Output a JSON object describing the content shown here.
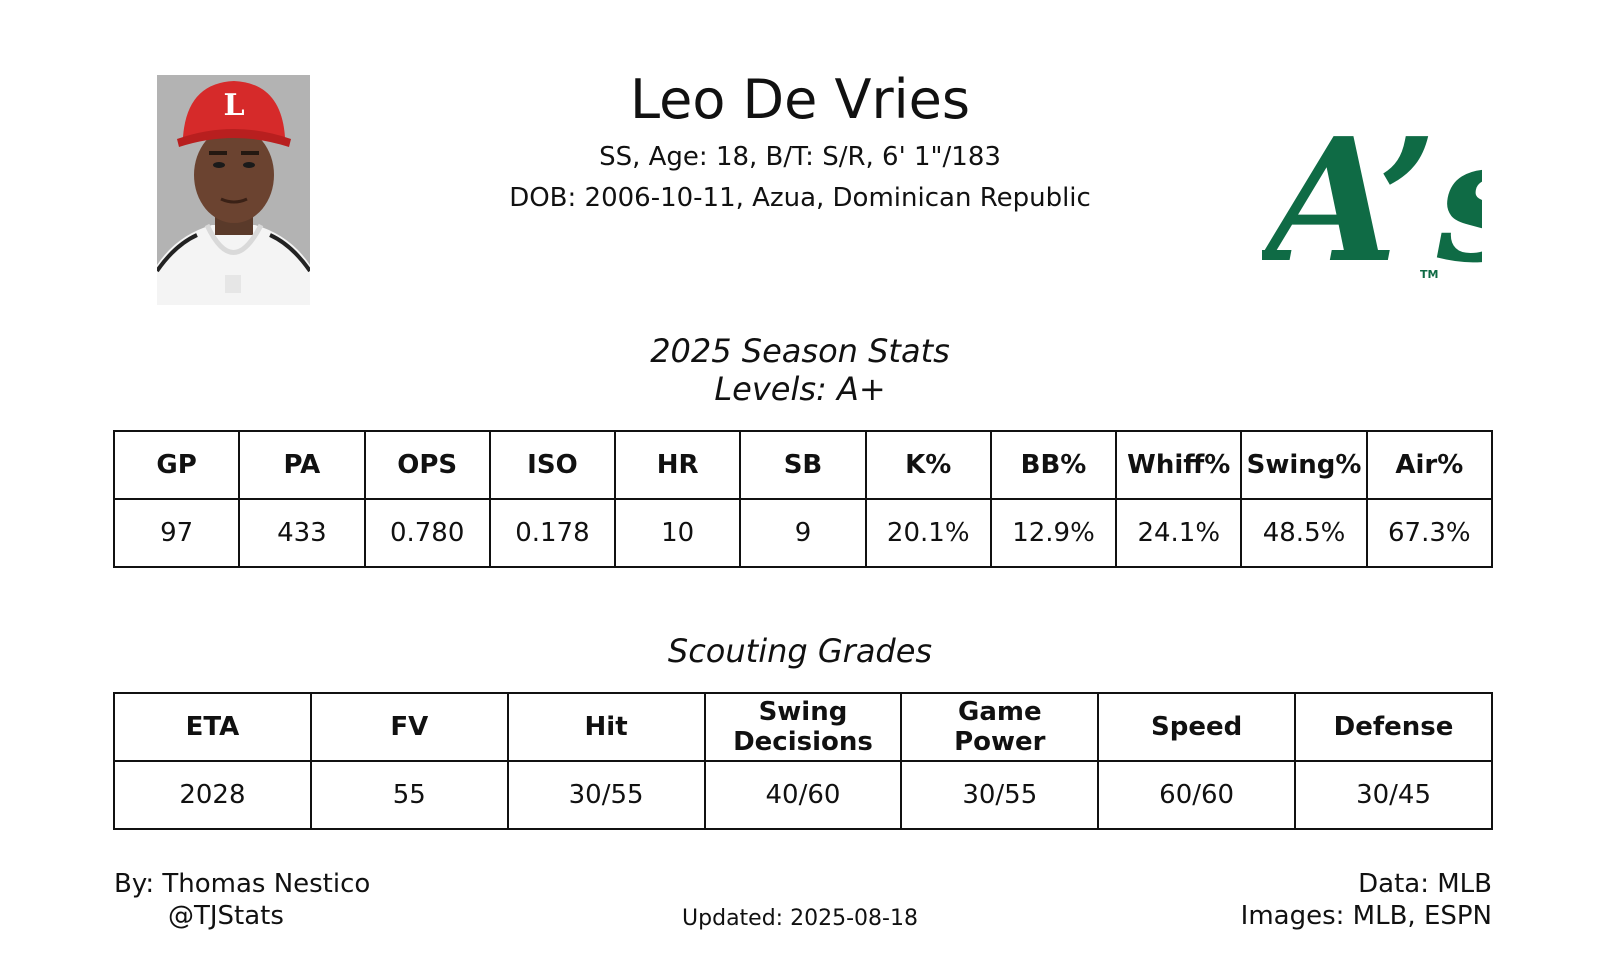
{
  "player": {
    "name": "Leo De Vries",
    "bio_line_1": "SS, Age: 18, B/T: S/R, 6' 1\"/183",
    "bio_line_2": "DOB: 2006-10-11, Azua, Dominican Republic"
  },
  "team_logo": {
    "text": "A’s",
    "trademark": "TM",
    "color": "#0f6b45"
  },
  "headshot": {
    "cap_letter": "L",
    "cap_color": "#d62a2a",
    "background_color": "#b3b3b3"
  },
  "season_stats": {
    "title": "2025 Season Stats",
    "levels": "Levels: A+",
    "headers": [
      "GP",
      "PA",
      "OPS",
      "ISO",
      "HR",
      "SB",
      "K%",
      "BB%",
      "Whiff%",
      "Swing%",
      "Air%"
    ],
    "values": [
      "97",
      "433",
      "0.780",
      "0.178",
      "10",
      "9",
      "20.1%",
      "12.9%",
      "24.1%",
      "48.5%",
      "67.3%"
    ]
  },
  "scouting_grades": {
    "title": "Scouting Grades",
    "headers": [
      {
        "line1": "ETA",
        "line2": ""
      },
      {
        "line1": "FV",
        "line2": ""
      },
      {
        "line1": "Hit",
        "line2": ""
      },
      {
        "line1": "Swing",
        "line2": "Decisions"
      },
      {
        "line1": "Game",
        "line2": "Power"
      },
      {
        "line1": "Speed",
        "line2": ""
      },
      {
        "line1": "Defense",
        "line2": ""
      }
    ],
    "values": [
      "2028",
      "55",
      "30/55",
      "40/60",
      "30/55",
      "60/60",
      "30/45"
    ]
  },
  "footer": {
    "author": "By: Thomas Nestico",
    "handle": "@TJStats",
    "updated": "Updated: 2025-08-18",
    "data_source": "Data: MLB",
    "images_source": "Images: MLB, ESPN"
  }
}
